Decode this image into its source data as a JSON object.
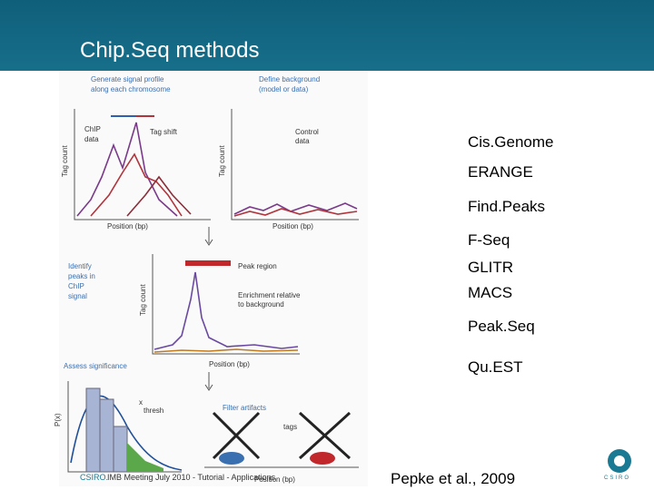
{
  "header": {
    "title": "Chip.Seq methods"
  },
  "tools": [
    "Cis.Genome",
    "ERANGE",
    "Find.Peaks",
    "F-Seq",
    "GLITR",
    "MACS",
    "Peak.Seq",
    "Qu.EST"
  ],
  "citation": "Pepke et al., 2009",
  "footer": {
    "org": "CSIRO.",
    "text": "IMB Meeting July 2010 - Tutorial - Applications",
    "logo": "CSIRO"
  },
  "figure": {
    "labels": [
      "Generate signal profile",
      "along each chromosome",
      "Define background",
      "(model or data)",
      "ChIP",
      "data",
      "Tag shift",
      "Control",
      "data",
      "Tag count",
      "Tag count",
      "Position (bp)",
      "Position (bp)",
      "Identify",
      "peaks in",
      "ChIP",
      "signal",
      "Peak region",
      "Enrichment relative",
      "to background",
      "Tag count",
      "Position (bp)",
      "Assess significance",
      "P(x)",
      "x",
      "thresh",
      "Filter artifacts",
      "tags",
      "Position (bp)"
    ]
  }
}
